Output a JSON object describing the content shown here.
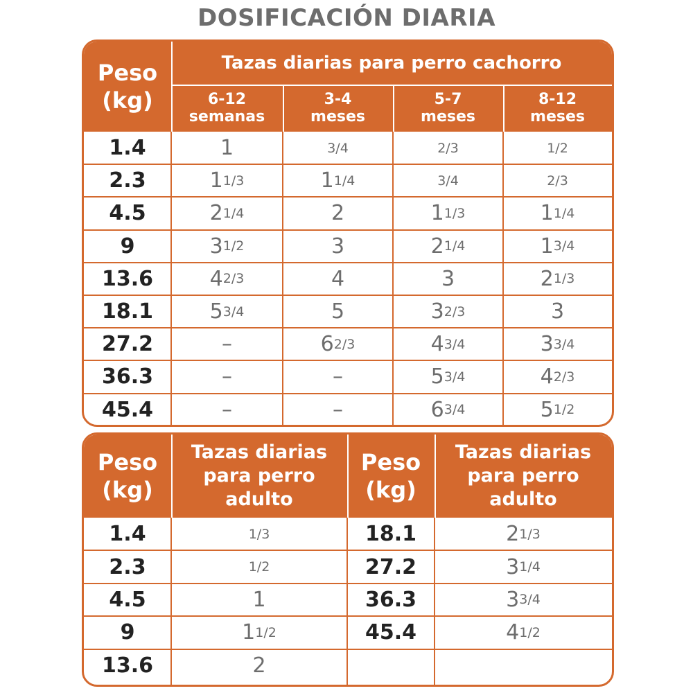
{
  "title": "DOSIFICACIÓN DIARIA",
  "colors": {
    "accent": "#d4692e",
    "text": "#6d6d6d",
    "weight_text": "#222222"
  },
  "puppy": {
    "peso_label": "Peso (kg)",
    "group_header": "Tazas diarias para perro cachorro",
    "columns": [
      {
        "top": "6-12",
        "bottom": "semanas"
      },
      {
        "top": "3-4",
        "bottom": "meses"
      },
      {
        "top": "5-7",
        "bottom": "meses"
      },
      {
        "top": "8-12",
        "bottom": "meses"
      }
    ],
    "rows": [
      {
        "peso": "1.4",
        "values": [
          "1",
          "3/4",
          "2/3",
          "1/2"
        ]
      },
      {
        "peso": "2.3",
        "values": [
          "1 1/3",
          "1 1/4",
          "3/4",
          "2/3"
        ]
      },
      {
        "peso": "4.5",
        "values": [
          "2 1/4",
          "2",
          "1 1/3",
          "1 1/4"
        ]
      },
      {
        "peso": "9",
        "values": [
          "3 1/2",
          "3",
          "2 1/4",
          "1 3/4"
        ]
      },
      {
        "peso": "13.6",
        "values": [
          "4 2/3",
          "4",
          "3",
          "2 1/3"
        ]
      },
      {
        "peso": "18.1",
        "values": [
          "5 3/4",
          "5",
          "3 2/3",
          "3"
        ]
      },
      {
        "peso": "27.2",
        "values": [
          "–",
          "6 2/3",
          "4 3/4",
          "3 3/4"
        ]
      },
      {
        "peso": "36.3",
        "values": [
          "–",
          "–",
          "5 3/4",
          "4 2/3"
        ]
      },
      {
        "peso": "45.4",
        "values": [
          "–",
          "–",
          "6 3/4",
          "5 1/2"
        ]
      }
    ]
  },
  "adult": {
    "peso_label": "Peso (kg)",
    "cups_label": "Tazas diarias para perro adulto",
    "left_rows": [
      {
        "peso": "1.4",
        "value": "1/3"
      },
      {
        "peso": "2.3",
        "value": "1/2"
      },
      {
        "peso": "4.5",
        "value": "1"
      },
      {
        "peso": "9",
        "value": "1 1/2"
      },
      {
        "peso": "13.6",
        "value": "2"
      }
    ],
    "right_rows": [
      {
        "peso": "18.1",
        "value": "2 1/3"
      },
      {
        "peso": "27.2",
        "value": "3 1/4"
      },
      {
        "peso": "36.3",
        "value": "3 3/4"
      },
      {
        "peso": "45.4",
        "value": "4 1/2"
      },
      {
        "peso": "",
        "value": ""
      }
    ]
  }
}
